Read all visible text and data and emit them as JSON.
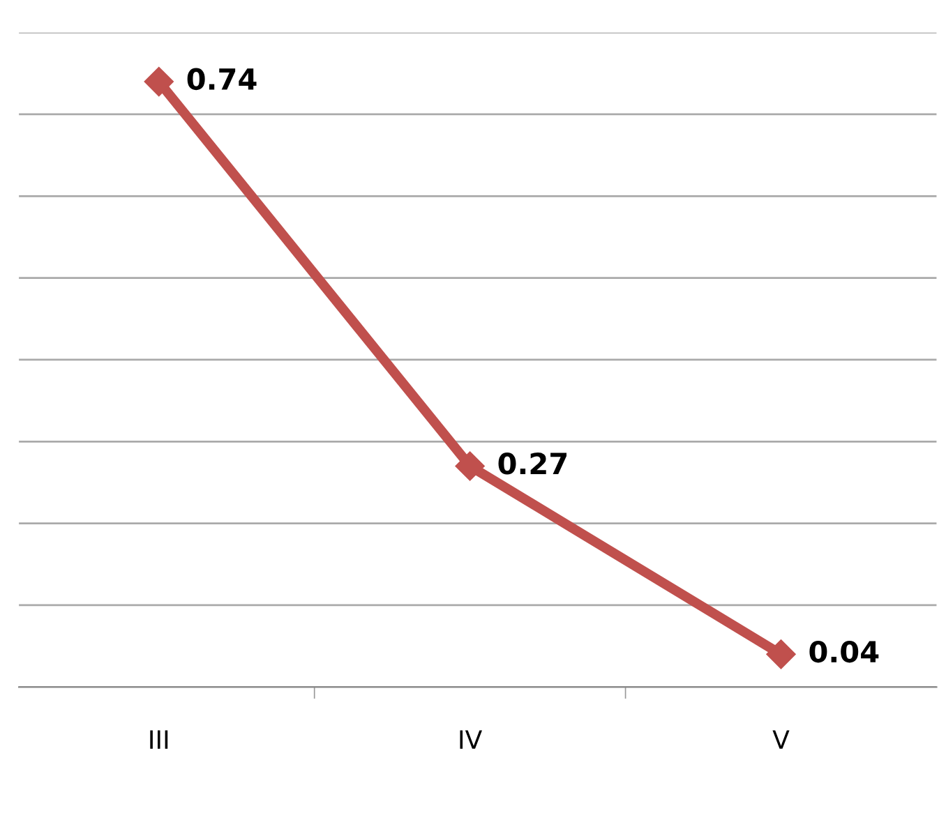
{
  "chart_data": {
    "type": "line",
    "categories": [
      "III",
      "IV",
      "V"
    ],
    "series": [
      {
        "color": "#c0504d",
        "values": [
          0.74,
          0.27,
          0.04
        ]
      }
    ],
    "ylim": [
      0,
      0.8
    ],
    "yticks": [
      {
        "value": 0,
        "label": null
      },
      {
        "value": 0.1,
        "label": null
      },
      {
        "value": 0.2,
        "label": null
      },
      {
        "value": 0.3,
        "label": null
      },
      {
        "value": 0.4,
        "label": null
      },
      {
        "value": 0.5,
        "label": null
      },
      {
        "value": 0.6,
        "label": null
      },
      {
        "value": 0.7,
        "label": null
      },
      {
        "value": 0.8,
        "label": null
      }
    ],
    "tick_labels": "x",
    "grid": "y",
    "marker": "diamond",
    "line_style": "solid",
    "data_labels": true
  }
}
